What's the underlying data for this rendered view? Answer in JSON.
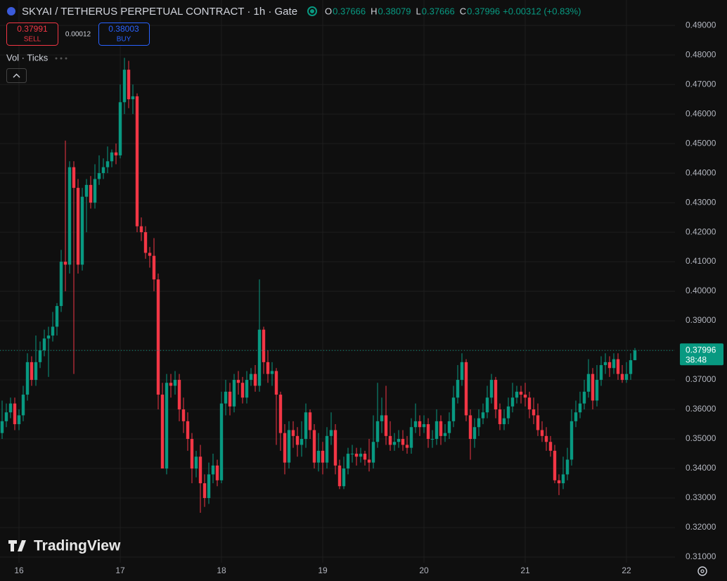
{
  "chart_data": {
    "type": "candlestick",
    "title": "SKYAI / TETHERUS PERPETUAL CONTRACT · 1h · Gate",
    "ohlc_labels": [
      "O",
      "H",
      "L",
      "C"
    ],
    "change": "+0.00312 (+0.83%)",
    "sell": {
      "price": "0.37991",
      "label": "SELL"
    },
    "spread": "0.00012",
    "buy": {
      "price": "0.38003",
      "label": "BUY"
    },
    "indicator": "Vol · Ticks",
    "countdown": "38:48",
    "watermark": "TradingView",
    "up_color": "#089981",
    "down_color": "#f23645",
    "grid": true,
    "xlim": [
      -0.5,
      159.5
    ],
    "xticks": [
      {
        "value": 4,
        "label": "16"
      },
      {
        "value": 28,
        "label": "17"
      },
      {
        "value": 52,
        "label": "18"
      },
      {
        "value": 76,
        "label": "19"
      },
      {
        "value": 100,
        "label": "20"
      },
      {
        "value": 124,
        "label": "21"
      },
      {
        "value": 148,
        "label": "22"
      }
    ],
    "ylim": [
      0.3081,
      0.4986
    ],
    "yticks": [
      {
        "value": 0.31,
        "label": "0.31000"
      },
      {
        "value": 0.32,
        "label": "0.32000"
      },
      {
        "value": 0.33,
        "label": "0.33000"
      },
      {
        "value": 0.34,
        "label": "0.34000"
      },
      {
        "value": 0.35,
        "label": "0.35000"
      },
      {
        "value": 0.36,
        "label": "0.36000"
      },
      {
        "value": 0.37,
        "label": "0.37000"
      },
      {
        "value": 0.38,
        "label": "0.38000"
      },
      {
        "value": 0.39,
        "label": "0.39000"
      },
      {
        "value": 0.4,
        "label": "0.40000"
      },
      {
        "value": 0.41,
        "label": "0.41000"
      },
      {
        "value": 0.42,
        "label": "0.42000"
      },
      {
        "value": 0.43,
        "label": "0.43000"
      },
      {
        "value": 0.44,
        "label": "0.44000"
      },
      {
        "value": 0.45,
        "label": "0.45000"
      },
      {
        "value": 0.46,
        "label": "0.46000"
      },
      {
        "value": 0.47,
        "label": "0.47000"
      },
      {
        "value": 0.48,
        "label": "0.48000"
      },
      {
        "value": 0.49,
        "label": "0.49000"
      }
    ],
    "series": [
      {
        "open": [
          0.352,
          0.356,
          0.359,
          0.362,
          0.355,
          0.358,
          0.365,
          0.376,
          0.37,
          0.376,
          0.38,
          0.384,
          0.385,
          0.388,
          0.395,
          0.41,
          0.409,
          0.442,
          0.435,
          0.409,
          0.432,
          0.436,
          0.43,
          0.438,
          0.44,
          0.442,
          0.444,
          0.447,
          0.446,
          0.464,
          0.475,
          0.465,
          0.466,
          0.422,
          0.42,
          0.413,
          0.412,
          0.404,
          0.365,
          0.34,
          0.369,
          0.368,
          0.37,
          0.36,
          0.356,
          0.35,
          0.34,
          0.344,
          0.335,
          0.33,
          0.338,
          0.341,
          0.336,
          0.362,
          0.366,
          0.361,
          0.37,
          0.369,
          0.364,
          0.37,
          0.372,
          0.368,
          0.387,
          0.376,
          0.372,
          0.373,
          0.365,
          0.352,
          0.342,
          0.353,
          0.351,
          0.348,
          0.35,
          0.359,
          0.353,
          0.342,
          0.346,
          0.342,
          0.351,
          0.353,
          0.341,
          0.334,
          0.34,
          0.345,
          0.345,
          0.344,
          0.345,
          0.343,
          0.342,
          0.349,
          0.356,
          0.358,
          0.351,
          0.348,
          0.349,
          0.35,
          0.348,
          0.347,
          0.354,
          0.356,
          0.354,
          0.355,
          0.35,
          0.35,
          0.356,
          0.351,
          0.352,
          0.356,
          0.364,
          0.37,
          0.376,
          0.358,
          0.35,
          0.354,
          0.357,
          0.359,
          0.364,
          0.37,
          0.36,
          0.355,
          0.357,
          0.361,
          0.364,
          0.366,
          0.365,
          0.364,
          0.36,
          0.358,
          0.353,
          0.351,
          0.349,
          0.346,
          0.336,
          0.335,
          0.338,
          0.343,
          0.356,
          0.359,
          0.362,
          0.366,
          0.372,
          0.363,
          0.37,
          0.375,
          0.376,
          0.374,
          0.377,
          0.372,
          0.37,
          0.372,
          0.37666
        ],
        "high": [
          0.363,
          0.362,
          0.364,
          0.364,
          0.36,
          0.368,
          0.379,
          0.378,
          0.385,
          0.383,
          0.387,
          0.388,
          0.393,
          0.396,
          0.414,
          0.451,
          0.444,
          0.444,
          0.438,
          0.435,
          0.438,
          0.439,
          0.443,
          0.446,
          0.445,
          0.449,
          0.448,
          0.45,
          0.47,
          0.479,
          0.478,
          0.47,
          0.467,
          0.425,
          0.422,
          0.415,
          0.418,
          0.406,
          0.369,
          0.372,
          0.372,
          0.373,
          0.372,
          0.364,
          0.359,
          0.352,
          0.346,
          0.348,
          0.338,
          0.342,
          0.345,
          0.343,
          0.366,
          0.37,
          0.369,
          0.372,
          0.373,
          0.371,
          0.373,
          0.374,
          0.375,
          0.404,
          0.388,
          0.38,
          0.376,
          0.374,
          0.366,
          0.355,
          0.356,
          0.356,
          0.354,
          0.356,
          0.362,
          0.36,
          0.355,
          0.352,
          0.349,
          0.354,
          0.359,
          0.355,
          0.343,
          0.344,
          0.347,
          0.348,
          0.347,
          0.347,
          0.346,
          0.35,
          0.358,
          0.369,
          0.364,
          0.368,
          0.356,
          0.352,
          0.353,
          0.353,
          0.351,
          0.357,
          0.362,
          0.358,
          0.358,
          0.357,
          0.353,
          0.36,
          0.358,
          0.355,
          0.359,
          0.368,
          0.375,
          0.379,
          0.377,
          0.36,
          0.357,
          0.36,
          0.362,
          0.368,
          0.372,
          0.371,
          0.362,
          0.36,
          0.364,
          0.369,
          0.368,
          0.368,
          0.369,
          0.366,
          0.364,
          0.362,
          0.356,
          0.354,
          0.351,
          0.348,
          0.338,
          0.344,
          0.347,
          0.36,
          0.363,
          0.366,
          0.37,
          0.377,
          0.374,
          0.375,
          0.378,
          0.379,
          0.378,
          0.379,
          0.379,
          0.375,
          0.376,
          0.379,
          0.38079
        ],
        "low": [
          0.35,
          0.354,
          0.357,
          0.353,
          0.353,
          0.356,
          0.363,
          0.368,
          0.368,
          0.374,
          0.378,
          0.371,
          0.383,
          0.385,
          0.393,
          0.4,
          0.406,
          0.372,
          0.406,
          0.407,
          0.42,
          0.428,
          0.428,
          0.436,
          0.438,
          0.44,
          0.442,
          0.443,
          0.445,
          0.46,
          0.462,
          0.46,
          0.42,
          0.417,
          0.411,
          0.408,
          0.4,
          0.36,
          0.34,
          0.338,
          0.364,
          0.365,
          0.356,
          0.352,
          0.346,
          0.335,
          0.337,
          0.325,
          0.327,
          0.328,
          0.335,
          0.334,
          0.335,
          0.358,
          0.358,
          0.359,
          0.365,
          0.362,
          0.362,
          0.368,
          0.366,
          0.366,
          0.372,
          0.369,
          0.368,
          0.348,
          0.346,
          0.338,
          0.34,
          0.347,
          0.344,
          0.344,
          0.347,
          0.35,
          0.34,
          0.339,
          0.338,
          0.34,
          0.348,
          0.338,
          0.333,
          0.333,
          0.338,
          0.342,
          0.341,
          0.342,
          0.341,
          0.339,
          0.34,
          0.347,
          0.352,
          0.348,
          0.346,
          0.346,
          0.347,
          0.346,
          0.345,
          0.345,
          0.352,
          0.351,
          0.352,
          0.347,
          0.347,
          0.348,
          0.348,
          0.349,
          0.35,
          0.354,
          0.362,
          0.368,
          0.356,
          0.343,
          0.347,
          0.351,
          0.355,
          0.357,
          0.362,
          0.357,
          0.353,
          0.353,
          0.355,
          0.359,
          0.362,
          0.362,
          0.361,
          0.357,
          0.355,
          0.351,
          0.349,
          0.346,
          0.344,
          0.335,
          0.331,
          0.333,
          0.336,
          0.341,
          0.354,
          0.357,
          0.36,
          0.364,
          0.36,
          0.361,
          0.368,
          0.372,
          0.371,
          0.372,
          0.37,
          0.369,
          0.369,
          0.37,
          0.37666
        ],
        "close": [
          0.356,
          0.359,
          0.362,
          0.355,
          0.358,
          0.365,
          0.376,
          0.37,
          0.376,
          0.38,
          0.384,
          0.385,
          0.388,
          0.395,
          0.41,
          0.409,
          0.442,
          0.435,
          0.409,
          0.432,
          0.436,
          0.43,
          0.438,
          0.44,
          0.442,
          0.444,
          0.447,
          0.446,
          0.464,
          0.475,
          0.465,
          0.466,
          0.422,
          0.42,
          0.413,
          0.412,
          0.404,
          0.365,
          0.34,
          0.369,
          0.368,
          0.37,
          0.36,
          0.356,
          0.35,
          0.34,
          0.344,
          0.335,
          0.33,
          0.338,
          0.341,
          0.336,
          0.362,
          0.366,
          0.361,
          0.37,
          0.369,
          0.364,
          0.37,
          0.372,
          0.368,
          0.387,
          0.376,
          0.372,
          0.373,
          0.365,
          0.352,
          0.342,
          0.353,
          0.351,
          0.348,
          0.35,
          0.359,
          0.353,
          0.342,
          0.346,
          0.342,
          0.351,
          0.353,
          0.341,
          0.334,
          0.34,
          0.345,
          0.345,
          0.344,
          0.345,
          0.343,
          0.342,
          0.349,
          0.356,
          0.358,
          0.351,
          0.348,
          0.349,
          0.35,
          0.348,
          0.347,
          0.354,
          0.356,
          0.354,
          0.355,
          0.35,
          0.35,
          0.356,
          0.351,
          0.352,
          0.356,
          0.364,
          0.37,
          0.376,
          0.358,
          0.35,
          0.354,
          0.357,
          0.359,
          0.364,
          0.37,
          0.36,
          0.355,
          0.357,
          0.361,
          0.364,
          0.366,
          0.365,
          0.364,
          0.36,
          0.358,
          0.353,
          0.351,
          0.349,
          0.346,
          0.336,
          0.335,
          0.338,
          0.343,
          0.356,
          0.359,
          0.362,
          0.366,
          0.372,
          0.363,
          0.37,
          0.375,
          0.376,
          0.374,
          0.377,
          0.372,
          0.37,
          0.372,
          0.37666,
          0.37996
        ]
      }
    ]
  }
}
